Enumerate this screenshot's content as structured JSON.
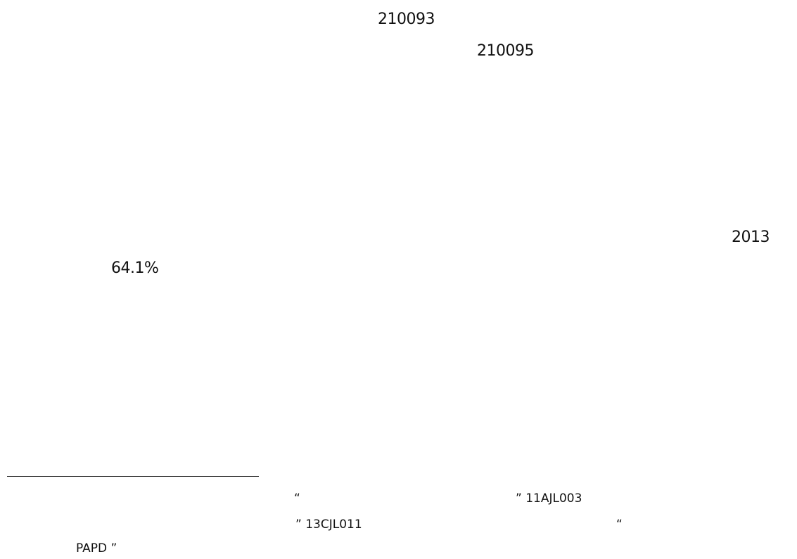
{
  "page": {
    "postal_code_1": "210093",
    "postal_code_2": "210095",
    "year": "2013",
    "percentage": "64.1%"
  },
  "footnote": {
    "line1_open_quote": "“",
    "line1_close_quote_and_code": "” 11AJL003",
    "line2_quote_and_code": "” 13CJL011",
    "line2_open_quote": "“",
    "line3_text": "PAPD ”"
  }
}
